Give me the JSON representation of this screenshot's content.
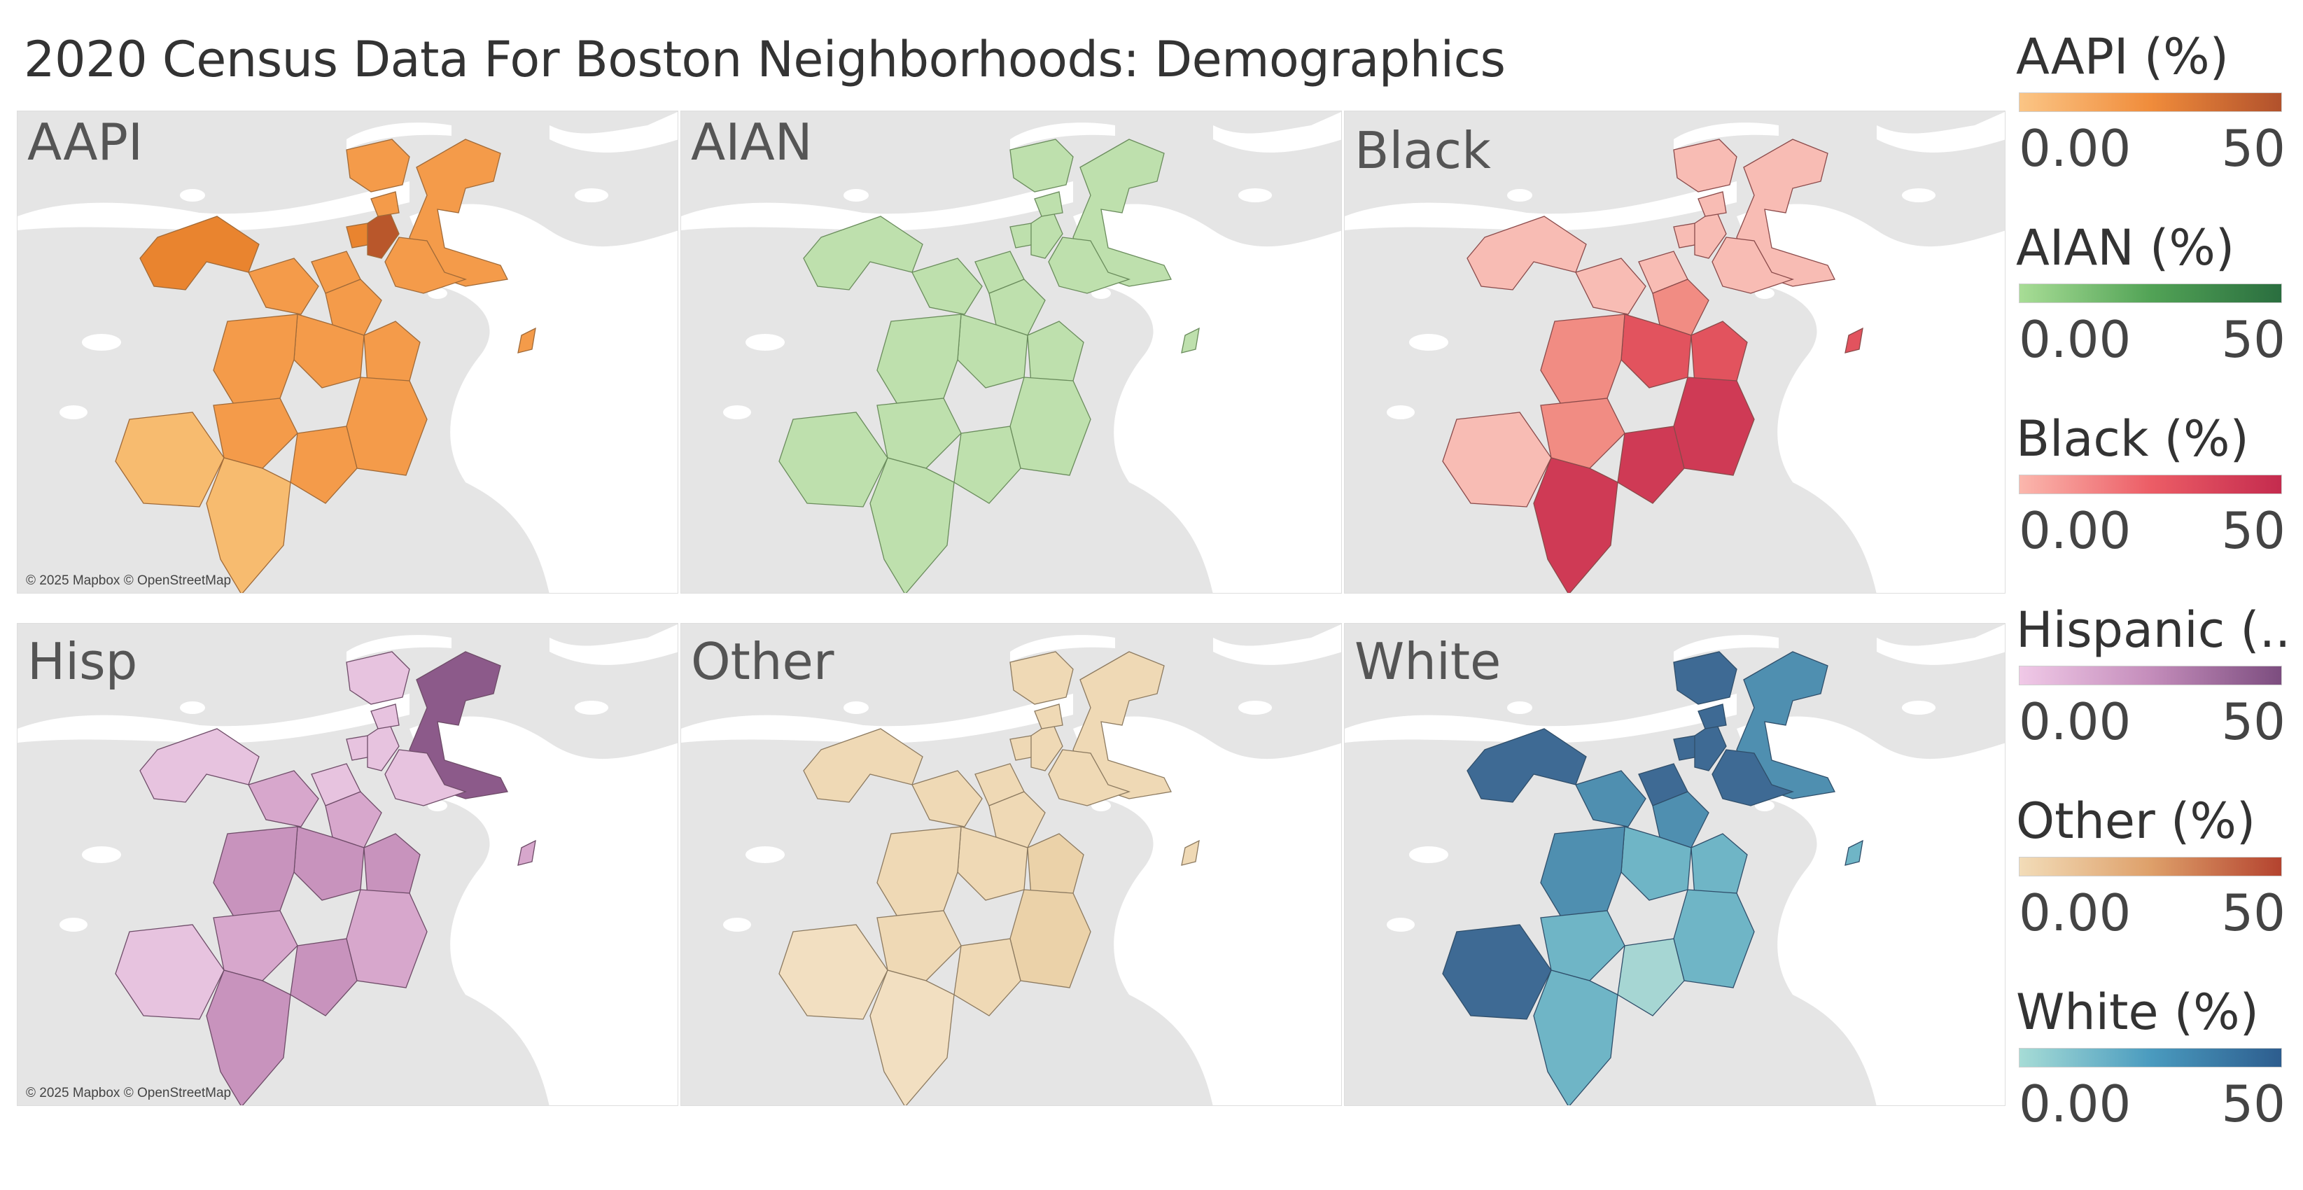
{
  "title": "2020 Census Data For Boston Neighborhoods: Demographics",
  "map_credit": "© 2025 Mapbox © OpenStreetMap",
  "panels": [
    {
      "label": "AAPI",
      "palette": [
        "#f7bb6f",
        "#f49b4a",
        "#e9842f",
        "#b9572b"
      ],
      "base": "#f4b86a",
      "stroke": "#a06a38"
    },
    {
      "label": "AIAN",
      "palette": [
        "#c4e2b4",
        "#bee0ad",
        "#b7dca6",
        "#a9d596"
      ],
      "base": "#c2e1b2",
      "stroke": "#6a8c5c"
    },
    {
      "label": "Black",
      "palette": [
        "#f8bcb4",
        "#f18c83",
        "#e2535e",
        "#cf3a55"
      ],
      "base": "#f6aaa2",
      "stroke": "#8a4a4a"
    },
    {
      "label": "Hisp",
      "palette": [
        "#e7c3df",
        "#d7a7cc",
        "#c893bd",
        "#8c5a8a"
      ],
      "base": "#d9aed0",
      "stroke": "#6e4c68"
    },
    {
      "label": "Other",
      "palette": [
        "#f2dfc1",
        "#efd9b5",
        "#ebd2a9",
        "#e6c99c"
      ],
      "base": "#efdab8",
      "stroke": "#8c7a60"
    },
    {
      "label": "White",
      "palette": [
        "#a6d6d3",
        "#6fb5c6",
        "#4f8fb0",
        "#3e6a94"
      ],
      "base": "#4e7ca2",
      "stroke": "#2f4e6a"
    }
  ],
  "legends": [
    {
      "title": "AAPI (%)",
      "min": "0.00",
      "max": "50",
      "colors": [
        "#fbc585",
        "#f08c3b",
        "#b1512c"
      ]
    },
    {
      "title": "AIAN (%)",
      "min": "0.00",
      "max": "50",
      "colors": [
        "#a8dd96",
        "#52a356",
        "#2a6e3f"
      ]
    },
    {
      "title": "Black (%)",
      "min": "0.00",
      "max": "50",
      "colors": [
        "#fbb7ad",
        "#ec5d66",
        "#c42b4e"
      ]
    },
    {
      "title": "Hispanic (..",
      "min": "0.00",
      "max": "50",
      "colors": [
        "#f0c9e7",
        "#c48dbb",
        "#7c4d7f"
      ]
    },
    {
      "title": "Other (%)",
      "min": "0.00",
      "max": "50",
      "colors": [
        "#f2dcb8",
        "#dea06a",
        "#b4432f"
      ]
    },
    {
      "title": "White (%)",
      "min": "0.00",
      "max": "50",
      "colors": [
        "#a6dcd6",
        "#4a9bbf",
        "#2d5d8e"
      ]
    }
  ]
}
